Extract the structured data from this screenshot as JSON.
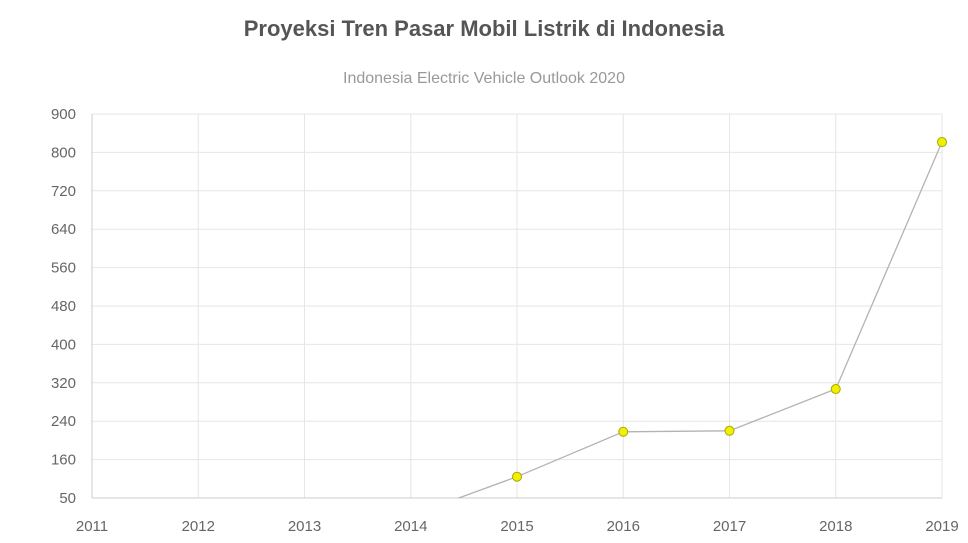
{
  "chart_data": {
    "type": "line",
    "title": "Proyeksi Tren Pasar Mobil Listrik di Indonesia",
    "subtitle": "Indonesia Electric Vehicle Outlook 2020",
    "xlabel": "",
    "ylabel": "",
    "x": [
      "2011",
      "2012",
      "2013",
      "2014",
      "2015",
      "2016",
      "2017",
      "2018",
      "2019"
    ],
    "y_ticks": [
      50,
      160,
      240,
      320,
      400,
      480,
      560,
      640,
      720,
      800,
      900
    ],
    "ylim": [
      50,
      900
    ],
    "xlim": [
      "2011",
      "2019"
    ],
    "grid": true,
    "series": [
      {
        "values": [
          null,
          null,
          null,
          null,
          111,
          218,
          220,
          307,
          827
        ],
        "line_color": "#b3b3b3",
        "point_color": "#f0f000",
        "point_border": "#a8a800"
      }
    ]
  }
}
